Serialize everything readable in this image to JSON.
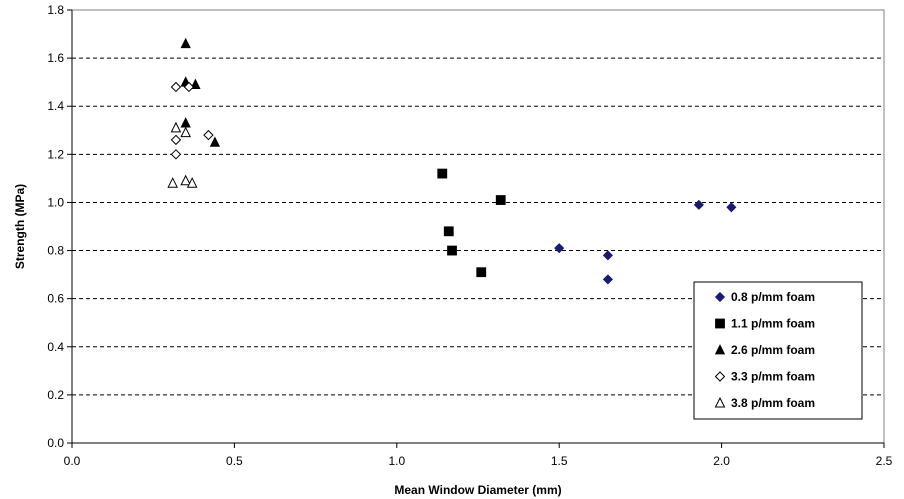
{
  "chart_data": {
    "type": "scatter",
    "title": "",
    "xlabel": "Mean Window Diameter  (mm)",
    "ylabel": "Strength (MPa)",
    "xlim": [
      0.0,
      2.5
    ],
    "ylim": [
      0.0,
      1.8
    ],
    "x_ticks": [
      "0.0",
      "0.5",
      "1.0",
      "1.5",
      "2.0",
      "2.5"
    ],
    "y_ticks": [
      "0.0",
      "0.2",
      "0.4",
      "0.6",
      "0.8",
      "1.0",
      "1.2",
      "1.4",
      "1.6",
      "1.8"
    ],
    "grid": "horizontal dashed",
    "legend_position": "bottom-right",
    "series": [
      {
        "name": "0.8 p/mm foam",
        "marker": "diamond-filled",
        "color": "#1a1a6e",
        "points": [
          [
            1.5,
            0.81
          ],
          [
            1.65,
            0.78
          ],
          [
            1.65,
            0.68
          ],
          [
            1.93,
            0.99
          ],
          [
            2.03,
            0.98
          ]
        ]
      },
      {
        "name": "1.1 p/mm foam",
        "marker": "square-filled",
        "color": "#000000",
        "points": [
          [
            1.14,
            1.12
          ],
          [
            1.16,
            0.88
          ],
          [
            1.17,
            0.8
          ],
          [
            1.26,
            0.71
          ],
          [
            1.32,
            1.01
          ]
        ]
      },
      {
        "name": "2.6 p/mm foam",
        "marker": "triangle-filled",
        "color": "#000000",
        "points": [
          [
            0.35,
            1.66
          ],
          [
            0.35,
            1.5
          ],
          [
            0.38,
            1.49
          ],
          [
            0.35,
            1.33
          ],
          [
            0.44,
            1.25
          ]
        ]
      },
      {
        "name": "3.3 p/mm foam",
        "marker": "diamond-open",
        "color": "#000000",
        "points": [
          [
            0.32,
            1.48
          ],
          [
            0.36,
            1.48
          ],
          [
            0.32,
            1.26
          ],
          [
            0.42,
            1.28
          ],
          [
            0.32,
            1.2
          ]
        ]
      },
      {
        "name": "3.8 p/mm foam",
        "marker": "triangle-open",
        "color": "#000000",
        "points": [
          [
            0.32,
            1.31
          ],
          [
            0.35,
            1.29
          ],
          [
            0.31,
            1.08
          ],
          [
            0.35,
            1.09
          ],
          [
            0.37,
            1.08
          ]
        ]
      }
    ]
  }
}
